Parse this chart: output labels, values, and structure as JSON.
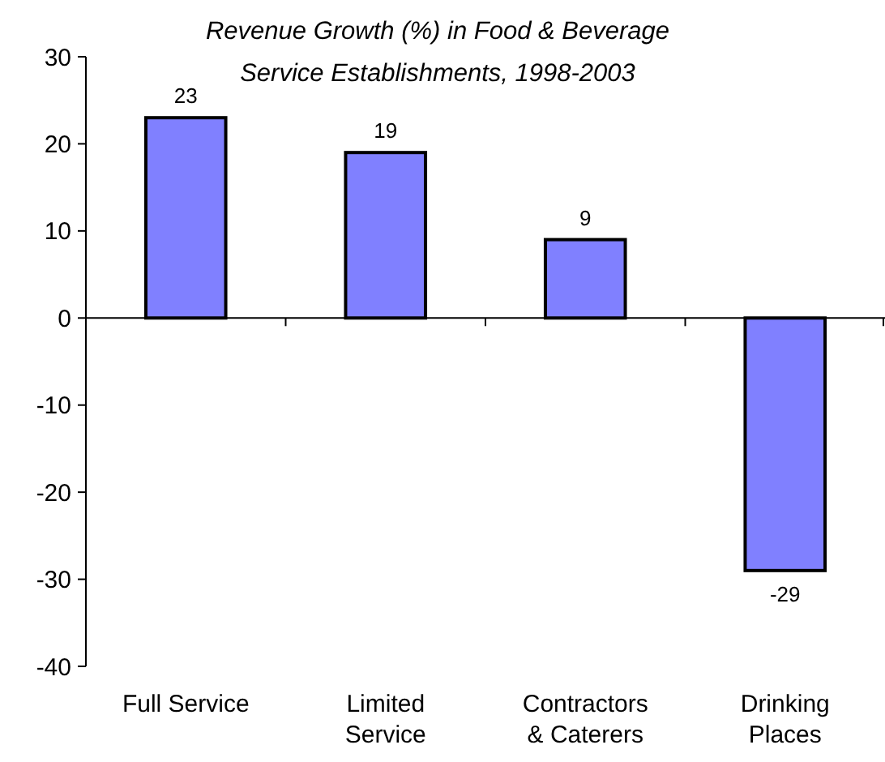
{
  "chart_data": {
    "type": "bar",
    "title": "Revenue Growth (%) in Food & Beverage\nService Establishments, 1998-2003",
    "categories": [
      "Full Service",
      "Limited\nService",
      "Contractors\n& Caterers",
      "Drinking\nPlaces"
    ],
    "values": [
      23,
      19,
      9,
      -29
    ],
    "color": "#8080ff",
    "data_labels": true,
    "ylim": [
      -40,
      30
    ],
    "yticks": [
      -40,
      -30,
      -20,
      -10,
      0,
      10,
      20,
      30
    ]
  }
}
